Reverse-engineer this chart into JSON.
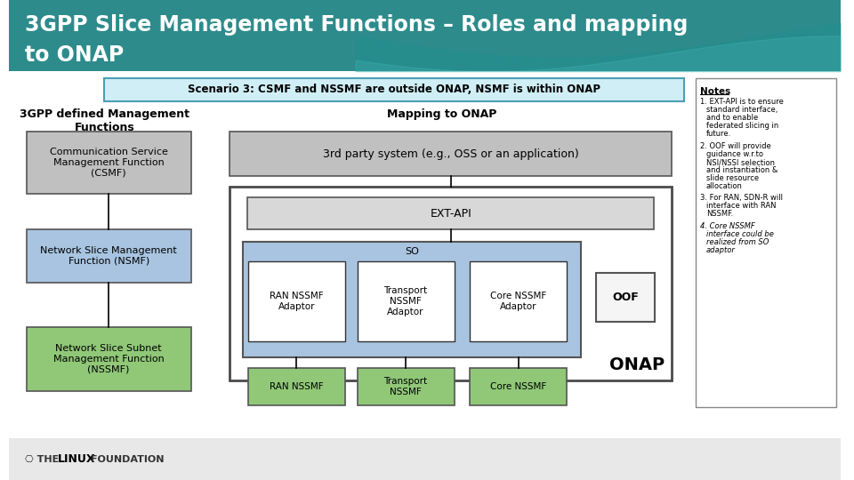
{
  "title_line1": "3GPP Slice Management Functions – Roles and mapping",
  "title_line2": "to ONAP",
  "title_bg": "#2e8b8b",
  "title_color": "white",
  "scenario_text": "Scenario 3: CSMF and NSSMF are outside ONAP, NSMF is within ONAP",
  "scenario_box_color": "#d0eef5",
  "scenario_border_color": "#4a9fb5",
  "left_title": "3GPP defined Management\nFunctions",
  "right_title": "Mapping to ONAP",
  "csmf_text": "Communication Service\nManagement Function\n(CSMF)",
  "csmf_color": "#c0c0c0",
  "nsmf_text": "Network Slice Management\nFunction (NSMF)",
  "nsmf_color": "#a8c4e0",
  "nssmf_text": "Network Slice Subnet\nManagement Function\n(NSSMF)",
  "nssmf_color": "#90c878",
  "third_party_text": "3rd party system (e.g., OSS or an application)",
  "third_party_color": "#c0c0c0",
  "ext_api_text": "EXT-API",
  "ext_api_color": "#d8d8d8",
  "so_color": "#a8c4e0",
  "so_text": "SO",
  "ran_adaptor_text": "RAN NSSMF\nAdaptor",
  "transport_adaptor_text": "Transport\nNSSMF\nAdaptor",
  "core_adaptor_text": "Core NSSMF\nAdaptor",
  "adaptor_color": "white",
  "oof_text": "OOF",
  "oof_color": "#f5f5f5",
  "onap_text": "ONAP",
  "onap_border": "#4a4a4a",
  "ran_nssmf_text": "RAN NSSMF",
  "transport_nssmf_text": "Transport\nNSSMF",
  "core_nssmf_text": "Core NSSMF",
  "bottom_nssmf_color": "#90c878",
  "notes_title": "Notes",
  "notes": [
    "EXT-API is to ensure standard interface, and to enable federated slicing in future.",
    "OOF will provide guidance w.r.to NSI/NSSI selection and instantiation & slide resource allocation",
    "For RAN, SDN-R will interface with RAN NSSMF.",
    "Core NSSMF interface could be realized from SO adaptor"
  ],
  "bg_color": "white",
  "footer_bg": "#e8e8e8"
}
